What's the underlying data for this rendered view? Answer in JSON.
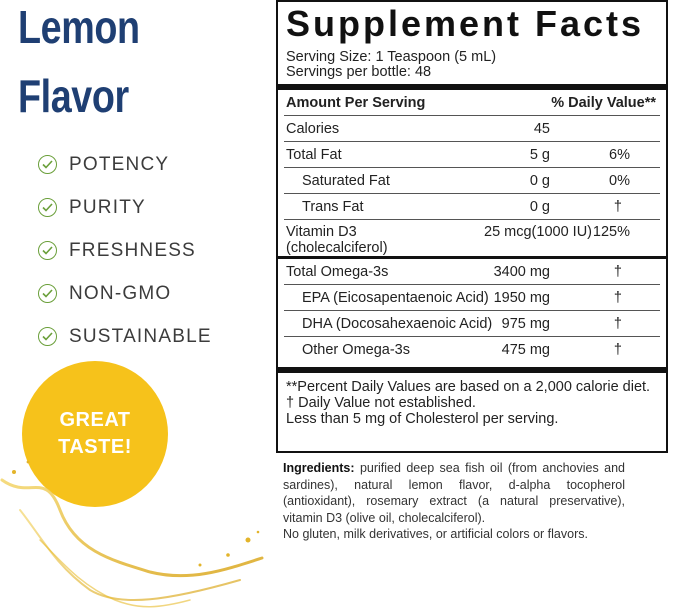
{
  "left": {
    "headline_line1": "Lemon",
    "headline_line2": "Flavor",
    "features": [
      "POTENCY",
      "PURITY",
      "FRESHNESS",
      "NON-GMO",
      "SUSTAINABLE"
    ],
    "feature_icon": "check-circle-icon",
    "badge_line1": "GREAT",
    "badge_line2": "TASTE!",
    "colors": {
      "headline": "#1f3f73",
      "check": "#6a9f3a",
      "badge": "#f6c21b"
    }
  },
  "facts": {
    "title": "Supplement Facts",
    "serving_size": "Serving Size: 1 Teaspoon (5 mL)",
    "servings_per": "Servings per bottle: 48",
    "header_left": "Amount Per Serving",
    "header_right": "% Daily Value**",
    "rows": [
      {
        "name": "Calories",
        "amount": "45",
        "dv": ""
      },
      {
        "name": "Total Fat",
        "amount": "5 g",
        "dv": "6%"
      },
      {
        "name": "Saturated Fat",
        "amount": "0 g",
        "dv": "0%"
      },
      {
        "name": "Trans Fat",
        "amount": "0 g",
        "dv": "†"
      }
    ],
    "vitamin_d3": {
      "name_line1": "Vitamin D3",
      "name_line2": "(cholecalciferol)",
      "amount": "25 mcg(1000 IU)",
      "dv": "125%"
    },
    "omega_rows": [
      {
        "name": "Total Omega-3s",
        "amount": "3400 mg",
        "dv": "†"
      },
      {
        "name": "EPA (Eicosapentaenoic Acid)",
        "amount": "1950 mg",
        "dv": "†"
      },
      {
        "name": "DHA (Docosahexaenoic Acid)",
        "amount": "975 mg",
        "dv": "†"
      },
      {
        "name": "Other Omega-3s",
        "amount": "475 mg",
        "dv": "†"
      }
    ],
    "footnote1": "**Percent Daily Values are based on a 2,000 calorie diet.",
    "footnote2": "†  Daily Value not established.",
    "footnote3": "Less than 5 mg of Cholesterol per serving."
  },
  "ingredients": {
    "label": "Ingredients:",
    "text": "purified deep sea fish oil (from anchovies and sardines), natural lemon flavor, d-alpha tocopherol (antioxidant), rosemary extract (a natural preservative), vitamin D3 (olive oil, cholecalciferol).",
    "note": "No gluten, milk derivatives, or artificial colors or flavors."
  }
}
